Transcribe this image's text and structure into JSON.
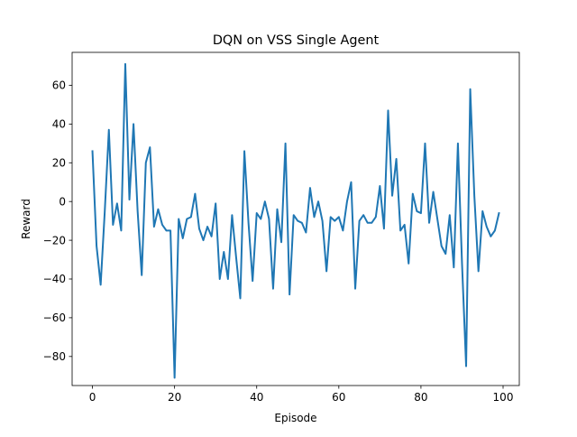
{
  "chart_data": {
    "type": "line",
    "title": "DQN on VSS Single Agent",
    "xlabel": "Episode",
    "ylabel": "Reward",
    "xlim": [
      -4.95,
      103.95
    ],
    "ylim": [
      -95,
      77
    ],
    "xticks": [
      0,
      20,
      40,
      60,
      80,
      100
    ],
    "yticks": [
      -80,
      -60,
      -40,
      -20,
      0,
      20,
      40,
      60
    ],
    "grid": false,
    "legend": "none",
    "line_color": "#1f77b4",
    "series": [
      {
        "x": [
          0,
          1,
          2,
          3,
          4,
          5,
          6,
          7,
          8,
          9,
          10,
          11,
          12,
          13,
          14,
          15,
          16,
          17,
          18,
          19,
          20,
          21,
          22,
          23,
          24,
          25,
          26,
          27,
          28,
          29,
          30,
          31,
          32,
          33,
          34,
          35,
          36,
          37,
          38,
          39,
          40,
          41,
          42,
          43,
          44,
          45,
          46,
          47,
          48,
          49,
          50,
          51,
          52,
          53,
          54,
          55,
          56,
          57,
          58,
          59,
          60,
          61,
          62,
          63,
          64,
          65,
          66,
          67,
          68,
          69,
          70,
          71,
          72,
          73,
          74,
          75,
          76,
          77,
          78,
          79,
          80,
          81,
          82,
          83,
          84,
          85,
          86,
          87,
          88,
          89,
          90,
          91,
          92,
          93,
          94,
          95,
          96,
          97,
          98,
          99
        ],
        "values": [
          26,
          -23,
          -43,
          -5,
          37,
          -12,
          -1,
          -15,
          71,
          1,
          40,
          -5,
          -38,
          20,
          28,
          -13,
          -4,
          -12,
          -15,
          -15,
          -91,
          -9,
          -19,
          -9,
          -8,
          4,
          -14,
          -20,
          -13,
          -18,
          -1,
          -40,
          -26,
          -40,
          -7,
          -29,
          -50,
          26,
          -11,
          -41,
          -6,
          -9,
          0,
          -9,
          -45,
          -4,
          -21,
          30,
          -48,
          -7,
          -10,
          -11,
          -16,
          7,
          -8,
          0,
          -10,
          -36,
          -8,
          -10,
          -8,
          -15,
          0,
          10,
          -45,
          -10,
          -7,
          -11,
          -11,
          -8,
          8,
          -14,
          47,
          3,
          22,
          -15,
          -12,
          -32,
          4,
          -5,
          -6,
          30,
          -11,
          5,
          -9,
          -23,
          -27,
          -7,
          -34,
          30,
          -32,
          -85,
          58,
          3,
          -36,
          -5,
          -13,
          -18,
          -15,
          -6
        ]
      }
    ]
  }
}
